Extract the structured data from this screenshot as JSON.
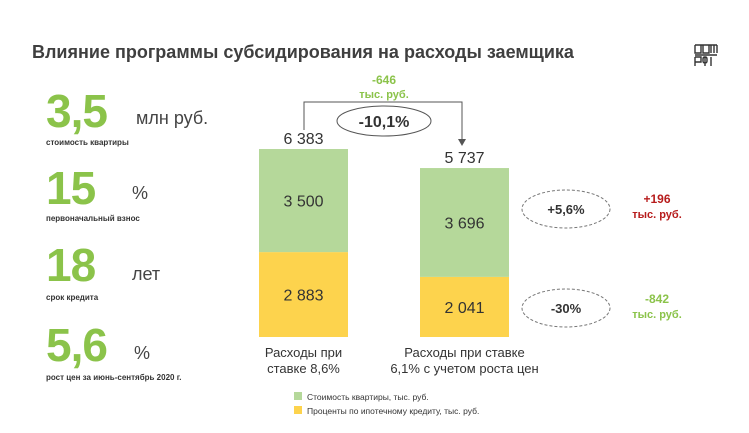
{
  "title": "Влияние программы субсидирования на расходы заемщика",
  "logo": "dom-rf-logo",
  "kpis": [
    {
      "value": "3,5",
      "unit": "млн руб.",
      "label": "стоимость квартиры"
    },
    {
      "value": "15",
      "unit": "%",
      "label": "первоначальный взнос"
    },
    {
      "value": "18",
      "unit": "лет",
      "label": "срок кредита"
    },
    {
      "value": "5,6",
      "unit": "%",
      "label": "рост цен за июнь-сентябрь 2020 г."
    }
  ],
  "colors": {
    "green": "#b5d89a",
    "yellow": "#fdd34d",
    "accent_green": "#8bc34a",
    "accent_red": "#b71c1c"
  },
  "chart_data": {
    "type": "bar",
    "stacked": true,
    "categories": [
      "Расходы при ставке 8,6%",
      "Расходы при ставке 6,1% с учетом роста цен"
    ],
    "category_lines": [
      [
        "Расходы при",
        "ставке 8,6%"
      ],
      [
        "Расходы при ставке",
        "6,1% с учетом роста цен"
      ]
    ],
    "series": [
      {
        "name": "Проценты по ипотечному кредиту, тыс. руб.",
        "values": [
          2883,
          2041
        ],
        "labels": [
          "2 883",
          "2 041"
        ],
        "color": "#fdd34d"
      },
      {
        "name": "Стоимость квартиры, тыс. руб.",
        "values": [
          3500,
          3696
        ],
        "labels": [
          "3 500",
          "3 696"
        ],
        "color": "#b5d89a"
      }
    ],
    "totals": [
      6383,
      5737
    ],
    "total_labels": [
      "6 383",
      "5 737"
    ],
    "legend": [
      {
        "name": "Стоимость квартиры, тыс. руб.",
        "color": "#b5d89a"
      },
      {
        "name": "Проценты по ипотечному кредиту, тыс. руб.",
        "color": "#fdd34d"
      }
    ],
    "legend_position": "bottom",
    "annotations": {
      "total_change": {
        "pct": "-10,1%",
        "abs": "-646",
        "unit": "тыс. руб."
      },
      "apartment_change": {
        "pct": "+5,6%",
        "abs": "+196",
        "unit": "тыс. руб."
      },
      "interest_change": {
        "pct": "-30%",
        "abs": "-842",
        "unit": "тыс. руб."
      }
    }
  }
}
